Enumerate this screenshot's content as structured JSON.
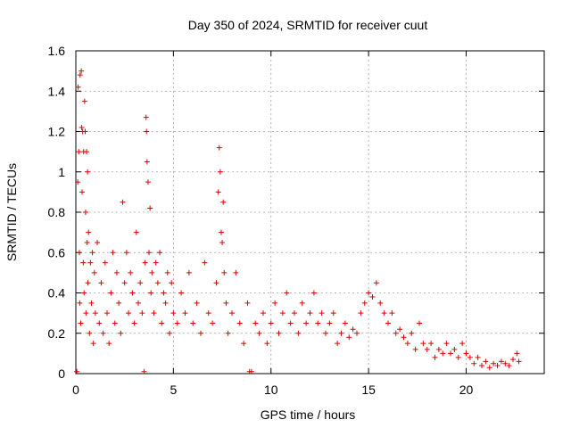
{
  "chart_data": {
    "type": "scatter",
    "title": "Day 350 of 2024, SRMTID for receiver cuut",
    "xlabel": "GPS time / hours",
    "ylabel": "SRMTID / TECUs",
    "xlim": [
      0,
      24
    ],
    "ylim": [
      0,
      1.6
    ],
    "x_ticks": [
      0,
      5,
      10,
      15,
      20
    ],
    "x_tick_labels": [
      "0",
      "5",
      "10",
      "15",
      "20"
    ],
    "y_ticks": [
      0,
      0.2,
      0.4,
      0.6,
      0.8,
      1.0,
      1.2,
      1.4,
      1.6
    ],
    "y_tick_labels": [
      "0",
      "0.2",
      "0.4",
      "0.6",
      "0.8",
      "1",
      "1.2",
      "1.4",
      "1.6"
    ],
    "grid": true,
    "marker": "+",
    "color": "#e00000",
    "series": [
      {
        "name": "SRMTID",
        "points": [
          [
            0.05,
            0.01
          ],
          [
            0.1,
            0.95
          ],
          [
            0.12,
            1.42
          ],
          [
            0.15,
            1.1
          ],
          [
            0.18,
            0.6
          ],
          [
            0.2,
            0.35
          ],
          [
            0.22,
            1.48
          ],
          [
            0.25,
            0.25
          ],
          [
            0.28,
            1.5
          ],
          [
            0.3,
            1.22
          ],
          [
            0.32,
            0.9
          ],
          [
            0.35,
            1.2
          ],
          [
            0.38,
            0.55
          ],
          [
            0.4,
            1.1
          ],
          [
            0.42,
            0.4
          ],
          [
            0.45,
            1.35
          ],
          [
            0.48,
            1.2
          ],
          [
            0.5,
            0.8
          ],
          [
            0.52,
            0.3
          ],
          [
            0.55,
            1.1
          ],
          [
            0.58,
            0.65
          ],
          [
            0.6,
            1.0
          ],
          [
            0.62,
            0.45
          ],
          [
            0.65,
            0.7
          ],
          [
            0.7,
            0.2
          ],
          [
            0.75,
            0.55
          ],
          [
            0.8,
            0.35
          ],
          [
            0.85,
            0.6
          ],
          [
            0.9,
            0.15
          ],
          [
            0.95,
            0.5
          ],
          [
            1.0,
            0.3
          ],
          [
            1.1,
            0.65
          ],
          [
            1.2,
            0.25
          ],
          [
            1.3,
            0.45
          ],
          [
            1.4,
            0.2
          ],
          [
            1.5,
            0.55
          ],
          [
            1.6,
            0.3
          ],
          [
            1.7,
            0.15
          ],
          [
            1.8,
            0.4
          ],
          [
            1.9,
            0.6
          ],
          [
            2.0,
            0.25
          ],
          [
            2.1,
            0.5
          ],
          [
            2.2,
            0.35
          ],
          [
            2.3,
            0.2
          ],
          [
            2.4,
            0.85
          ],
          [
            2.5,
            0.45
          ],
          [
            2.6,
            0.6
          ],
          [
            2.7,
            0.3
          ],
          [
            2.8,
            0.5
          ],
          [
            2.9,
            0.4
          ],
          [
            3.0,
            0.25
          ],
          [
            3.1,
            0.7
          ],
          [
            3.2,
            0.35
          ],
          [
            3.3,
            0.45
          ],
          [
            3.4,
            0.3
          ],
          [
            3.5,
            0.01
          ],
          [
            3.55,
            0.55
          ],
          [
            3.6,
            1.27
          ],
          [
            3.62,
            1.2
          ],
          [
            3.65,
            1.05
          ],
          [
            3.7,
            0.95
          ],
          [
            3.75,
            0.6
          ],
          [
            3.8,
            0.82
          ],
          [
            3.85,
            0.4
          ],
          [
            3.9,
            0.5
          ],
          [
            4.0,
            0.3
          ],
          [
            4.1,
            0.55
          ],
          [
            4.2,
            0.45
          ],
          [
            4.3,
            0.6
          ],
          [
            4.4,
            0.25
          ],
          [
            4.5,
            0.4
          ],
          [
            4.6,
            0.35
          ],
          [
            4.7,
            0.5
          ],
          [
            4.8,
            0.2
          ],
          [
            4.9,
            0.45
          ],
          [
            5.0,
            0.3
          ],
          [
            5.2,
            0.25
          ],
          [
            5.4,
            0.4
          ],
          [
            5.6,
            0.3
          ],
          [
            5.8,
            0.5
          ],
          [
            6.0,
            0.25
          ],
          [
            6.2,
            0.35
          ],
          [
            6.4,
            0.2
          ],
          [
            6.6,
            0.55
          ],
          [
            6.8,
            0.3
          ],
          [
            7.0,
            0.25
          ],
          [
            7.2,
            0.45
          ],
          [
            7.3,
            0.9
          ],
          [
            7.35,
            1.12
          ],
          [
            7.4,
            1.0
          ],
          [
            7.45,
            0.7
          ],
          [
            7.5,
            0.65
          ],
          [
            7.55,
            0.85
          ],
          [
            7.6,
            0.5
          ],
          [
            7.7,
            0.35
          ],
          [
            7.8,
            0.2
          ],
          [
            8.0,
            0.3
          ],
          [
            8.2,
            0.5
          ],
          [
            8.4,
            0.25
          ],
          [
            8.6,
            0.15
          ],
          [
            8.8,
            0.35
          ],
          [
            8.9,
            0.01
          ],
          [
            9.0,
            0.01
          ],
          [
            9.2,
            0.25
          ],
          [
            9.4,
            0.2
          ],
          [
            9.6,
            0.3
          ],
          [
            9.8,
            0.15
          ],
          [
            10.0,
            0.25
          ],
          [
            10.2,
            0.35
          ],
          [
            10.4,
            0.2
          ],
          [
            10.6,
            0.3
          ],
          [
            10.8,
            0.4
          ],
          [
            11.0,
            0.25
          ],
          [
            11.2,
            0.3
          ],
          [
            11.4,
            0.2
          ],
          [
            11.6,
            0.35
          ],
          [
            11.8,
            0.25
          ],
          [
            12.0,
            0.3
          ],
          [
            12.2,
            0.4
          ],
          [
            12.4,
            0.25
          ],
          [
            12.6,
            0.3
          ],
          [
            12.8,
            0.2
          ],
          [
            13.0,
            0.25
          ],
          [
            13.2,
            0.3
          ],
          [
            13.4,
            0.15
          ],
          [
            13.6,
            0.2
          ],
          [
            13.8,
            0.25
          ],
          [
            14.0,
            0.18
          ],
          [
            14.2,
            0.22
          ],
          [
            14.4,
            0.2
          ],
          [
            14.6,
            0.3
          ],
          [
            14.8,
            0.35
          ],
          [
            15.0,
            0.4
          ],
          [
            15.2,
            0.38
          ],
          [
            15.4,
            0.45
          ],
          [
            15.6,
            0.35
          ],
          [
            15.8,
            0.3
          ],
          [
            16.0,
            0.25
          ],
          [
            16.2,
            0.3
          ],
          [
            16.4,
            0.2
          ],
          [
            16.6,
            0.22
          ],
          [
            16.8,
            0.18
          ],
          [
            17.0,
            0.15
          ],
          [
            17.2,
            0.2
          ],
          [
            17.4,
            0.12
          ],
          [
            17.6,
            0.25
          ],
          [
            17.8,
            0.15
          ],
          [
            18.0,
            0.12
          ],
          [
            18.2,
            0.15
          ],
          [
            18.4,
            0.08
          ],
          [
            18.6,
            0.12
          ],
          [
            18.8,
            0.1
          ],
          [
            19.0,
            0.15
          ],
          [
            19.2,
            0.1
          ],
          [
            19.4,
            0.12
          ],
          [
            19.6,
            0.08
          ],
          [
            19.8,
            0.15
          ],
          [
            20.0,
            0.1
          ],
          [
            20.2,
            0.08
          ],
          [
            20.4,
            0.05
          ],
          [
            20.6,
            0.08
          ],
          [
            20.8,
            0.04
          ],
          [
            21.0,
            0.06
          ],
          [
            21.2,
            0.03
          ],
          [
            21.4,
            0.05
          ],
          [
            21.6,
            0.04
          ],
          [
            21.8,
            0.06
          ],
          [
            22.0,
            0.05
          ],
          [
            22.2,
            0.04
          ],
          [
            22.4,
            0.07
          ],
          [
            22.6,
            0.1
          ],
          [
            22.7,
            0.06
          ]
        ]
      }
    ]
  }
}
